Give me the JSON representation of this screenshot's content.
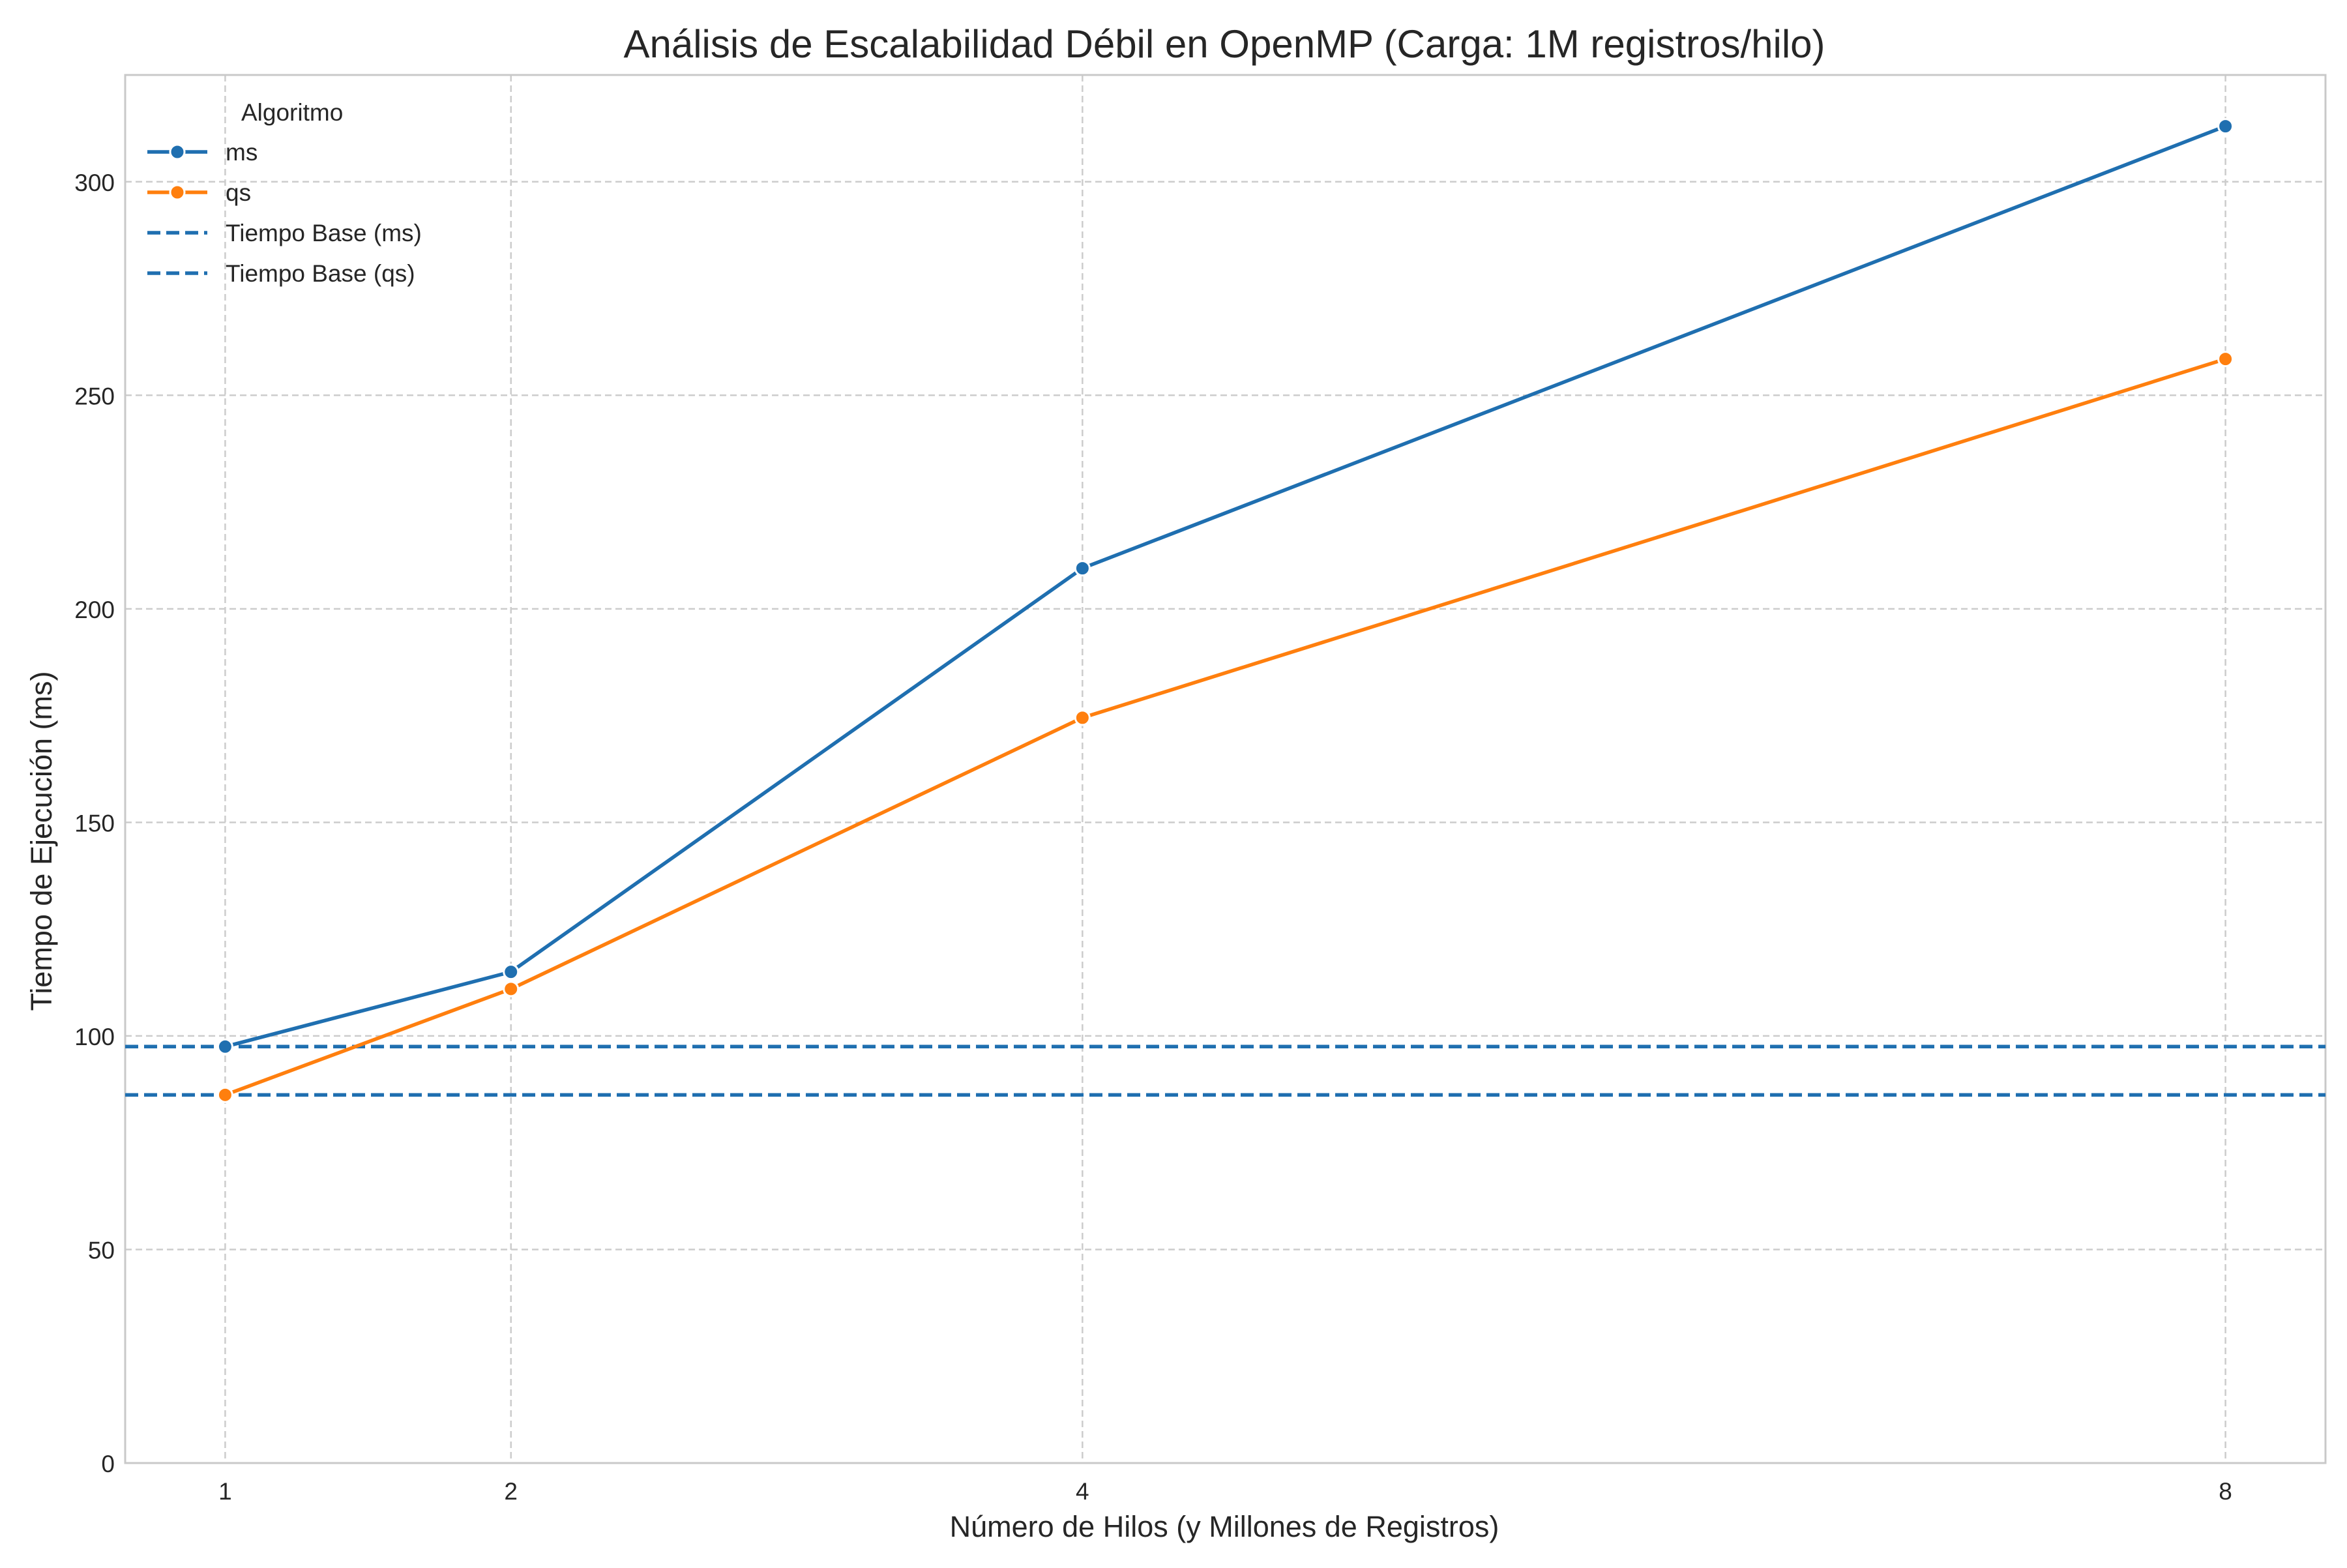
{
  "chart_data": {
    "type": "line",
    "title": "Análisis de Escalabilidad Débil en OpenMP (Carga: 1M registros/hilo)",
    "xlabel": "Número de Hilos (y Millones de Registros)",
    "ylabel": "Tiempo de Ejecución (ms)",
    "x": [
      1,
      2,
      4,
      8
    ],
    "x_ticks": [
      "1",
      "2",
      "4",
      "8"
    ],
    "xlim": [
      0.65,
      8.35
    ],
    "ylim": [
      0,
      325
    ],
    "y_ticks": [
      0,
      50,
      100,
      150,
      200,
      250,
      300
    ],
    "grid": true,
    "legend": {
      "title": "Algoritmo",
      "placement": "top-left"
    },
    "series": [
      {
        "name": "ms",
        "color": "#1f6fb0",
        "values": [
          97.5,
          115,
          209.5,
          313
        ],
        "marker": "circle",
        "style": "solid"
      },
      {
        "name": "qs",
        "color": "#ff7f0e",
        "values": [
          86.2,
          111,
          174.5,
          258.5
        ],
        "marker": "circle",
        "style": "solid"
      }
    ],
    "reference_lines": [
      {
        "name": "Tiempo Base (ms)",
        "value": 97.5,
        "color": "#1f6fb0",
        "style": "dashed"
      },
      {
        "name": "Tiempo Base (qs)",
        "value": 86.2,
        "color": "#1f6fb0",
        "style": "dashed"
      }
    ]
  }
}
